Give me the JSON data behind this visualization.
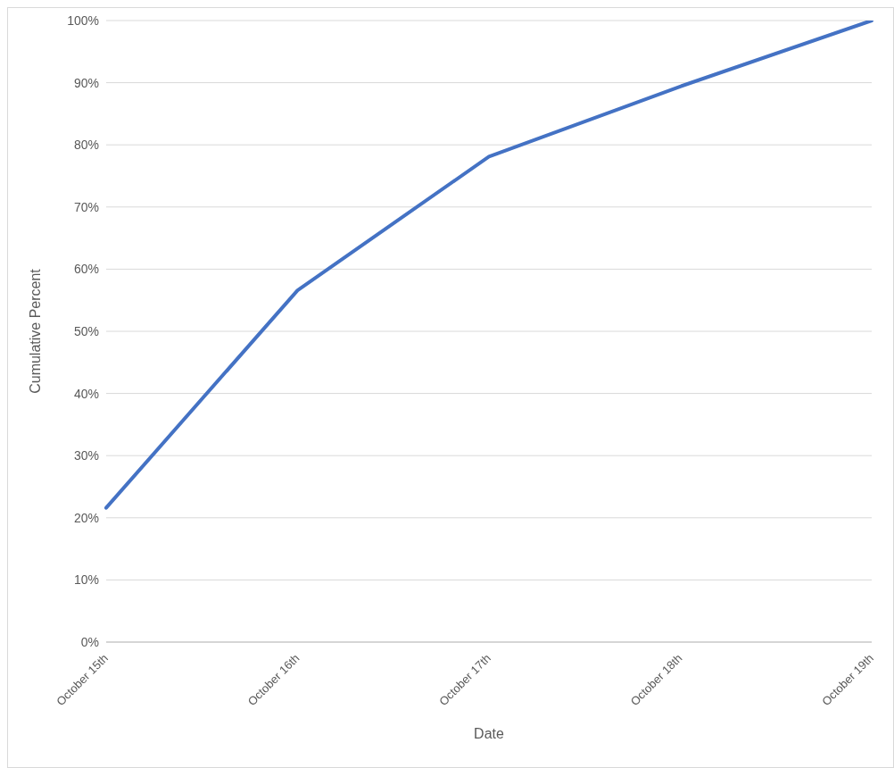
{
  "chart_data": {
    "type": "line",
    "xlabel": "Date",
    "ylabel": "Cumulative Percent",
    "categories": [
      "October 15th",
      "October 16th",
      "October 17th",
      "October 18th",
      "October 19th"
    ],
    "series": [
      {
        "color": "#4472c4",
        "values": [
          21.6,
          56.6,
          78.1,
          89.4,
          100
        ]
      }
    ],
    "ylim": [
      0,
      100
    ],
    "yticks": [
      {
        "value": 0,
        "label": "0%"
      },
      {
        "value": 10,
        "label": "10%"
      },
      {
        "value": 20,
        "label": "20%"
      },
      {
        "value": 30,
        "label": "30%"
      },
      {
        "value": 40,
        "label": "40%"
      },
      {
        "value": 50,
        "label": "50%"
      },
      {
        "value": 60,
        "label": "60%"
      },
      {
        "value": 70,
        "label": "70%"
      },
      {
        "value": 80,
        "label": "80%"
      },
      {
        "value": 90,
        "label": "90%"
      },
      {
        "value": 100,
        "label": "100%"
      }
    ],
    "grid": "y",
    "marker": "none",
    "line_style": "solid"
  }
}
